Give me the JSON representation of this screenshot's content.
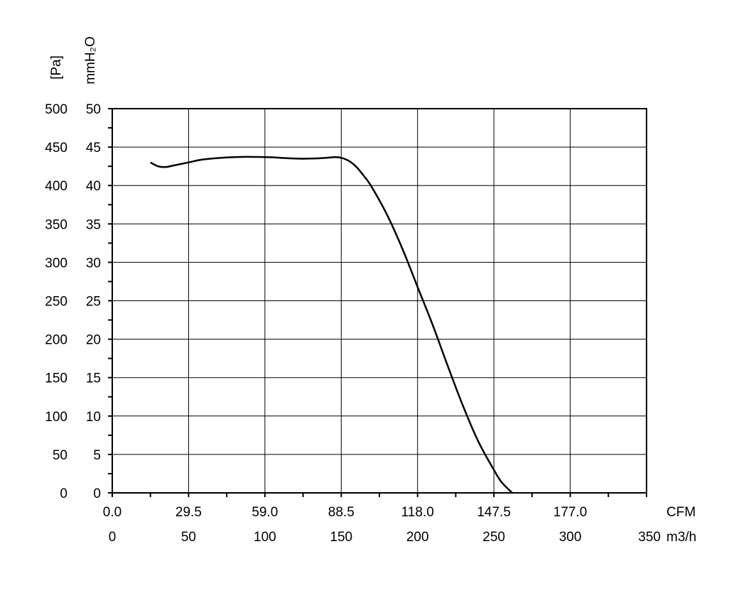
{
  "chart_data": {
    "type": "line",
    "y_label_primary": "[Pa]",
    "y_label_secondary": "mmH₂O",
    "x_label_primary": "CFM",
    "x_label_secondary": "m3/h",
    "xlim": [
      0,
      350
    ],
    "ylim": [
      0,
      500
    ],
    "grid": true,
    "x_ticks_m3h": [
      "0",
      "50",
      "100",
      "150",
      "200",
      "250",
      "300",
      "350"
    ],
    "x_ticks_cfm": [
      "0.0",
      "29.5",
      "59.0",
      "88.5",
      "118.0",
      "147.5",
      "177.0"
    ],
    "y_ticks_pa": [
      "0",
      "50",
      "100",
      "150",
      "200",
      "250",
      "300",
      "350",
      "400",
      "450",
      "500"
    ],
    "y_ticks_mmh2o": [
      "0",
      "5",
      "10",
      "15",
      "20",
      "25",
      "30",
      "35",
      "40",
      "45",
      "50"
    ],
    "series": [
      {
        "x": [
          25,
          30,
          35,
          40,
          50,
          60,
          80,
          100,
          110,
          120,
          130,
          140,
          146,
          150,
          155,
          160,
          165,
          170,
          180,
          190,
          200,
          210,
          220,
          230,
          240,
          250,
          255,
          262
        ],
        "y": [
          430,
          425,
          424,
          426,
          430,
          434,
          437,
          437,
          436,
          435,
          435,
          436,
          437,
          436,
          432,
          424,
          412,
          398,
          362,
          318,
          268,
          218,
          164,
          112,
          66,
          30,
          14,
          0
        ]
      }
    ]
  }
}
